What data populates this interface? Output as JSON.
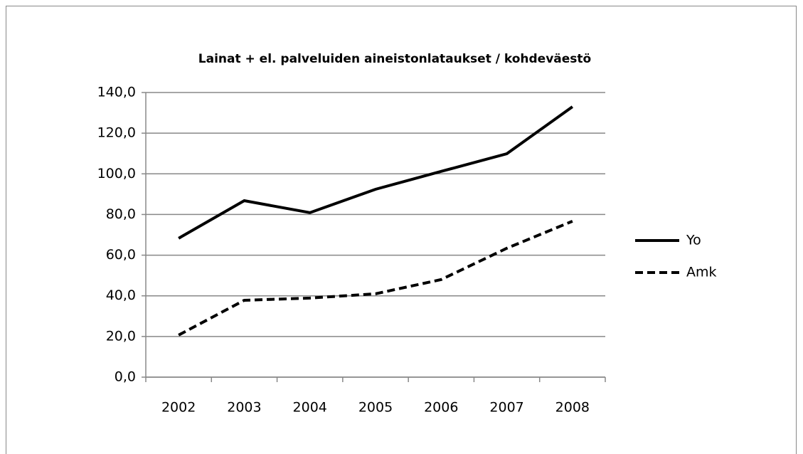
{
  "chart_data": {
    "type": "line",
    "title": "Lainat  + el. palveluiden aineistonlataukset / kohdeväestö",
    "categories": [
      "2002",
      "2003",
      "2004",
      "2005",
      "2006",
      "2007",
      "2008"
    ],
    "series": [
      {
        "name": "Yo",
        "color": "#000000",
        "line_style": "solid",
        "values": [
          68.3,
          86.8,
          80.9,
          92.4,
          101.2,
          109.9,
          133.0
        ]
      },
      {
        "name": "Amk",
        "color": "#000000",
        "line_style": "dashed",
        "values": [
          20.7,
          37.8,
          38.9,
          41.0,
          48.0,
          63.4,
          76.7
        ]
      }
    ],
    "ylim": [
      0,
      140
    ],
    "yticks": [
      {
        "value": 0,
        "label": "0,0"
      },
      {
        "value": 20,
        "label": "20,0"
      },
      {
        "value": 40,
        "label": "40,0"
      },
      {
        "value": 60,
        "label": "60,0"
      },
      {
        "value": 80,
        "label": "80,0"
      },
      {
        "value": 100,
        "label": "100,0"
      },
      {
        "value": 120,
        "label": "120,0"
      },
      {
        "value": 140,
        "label": "140,0"
      }
    ],
    "grid": true,
    "legend": "right"
  }
}
